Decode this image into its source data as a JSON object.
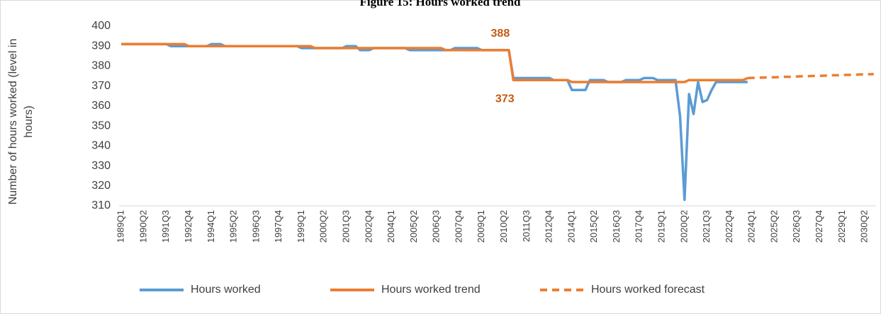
{
  "chart_data": {
    "type": "line",
    "title": "Figure 15: Hours worked trend",
    "y_label": "Number of hours worked (level in hours)",
    "ylim": [
      310,
      400
    ],
    "yticks": [
      310,
      320,
      330,
      340,
      350,
      360,
      370,
      380,
      390,
      400
    ],
    "grid": false,
    "legend": "bottom",
    "categories": [
      "1989Q1",
      null,
      null,
      null,
      null,
      "1990Q2",
      null,
      null,
      null,
      null,
      "1991Q3",
      null,
      null,
      null,
      null,
      "1992Q4",
      null,
      null,
      null,
      null,
      "1994Q1",
      null,
      null,
      null,
      null,
      "1995Q2",
      null,
      null,
      null,
      null,
      "1996Q3",
      null,
      null,
      null,
      null,
      "1997Q4",
      null,
      null,
      null,
      null,
      "1999Q1",
      null,
      null,
      null,
      null,
      "2000Q2",
      null,
      null,
      null,
      null,
      "2001Q3",
      null,
      null,
      null,
      null,
      "2002Q4",
      null,
      null,
      null,
      null,
      "2004Q1",
      null,
      null,
      null,
      null,
      "2005Q2",
      null,
      null,
      null,
      null,
      "2006Q3",
      null,
      null,
      null,
      null,
      "2007Q4",
      null,
      null,
      null,
      null,
      "2009Q1",
      null,
      null,
      null,
      null,
      "2010Q2",
      null,
      null,
      null,
      null,
      "2011Q3",
      null,
      null,
      null,
      null,
      "2012Q4",
      null,
      null,
      null,
      null,
      "2014Q1",
      null,
      null,
      null,
      null,
      "2015Q2",
      null,
      null,
      null,
      null,
      "2016Q3",
      null,
      null,
      null,
      null,
      "2017Q4",
      null,
      null,
      null,
      null,
      "2019Q1",
      null,
      null,
      null,
      null,
      "2020Q2",
      null,
      null,
      null,
      null,
      "2021Q3",
      null,
      null,
      null,
      null,
      "2022Q4",
      null,
      null,
      null,
      null,
      "2024Q1",
      null,
      null,
      null,
      null,
      "2025Q2",
      null,
      null,
      null,
      null,
      "2026Q3",
      null,
      null,
      null,
      null,
      "2027Q4",
      null,
      null,
      null,
      null,
      "2029Q1",
      null,
      null,
      null,
      null,
      "2030Q2",
      null,
      null
    ],
    "series": [
      {
        "name": "Hours worked",
        "color": "#5b9bd5",
        "style": "solid",
        "values": [
          391,
          391,
          391,
          391,
          391,
          391,
          391,
          391,
          391,
          391,
          391,
          390,
          390,
          390,
          390,
          390,
          390,
          390,
          390,
          390,
          391,
          391,
          391,
          390,
          390,
          390,
          390,
          390,
          390,
          390,
          390,
          390,
          390,
          390,
          390,
          390,
          390,
          390,
          390,
          390,
          389,
          389,
          389,
          389,
          389,
          389,
          389,
          389,
          389,
          389,
          390,
          390,
          390,
          388,
          388,
          388,
          389,
          389,
          389,
          389,
          389,
          389,
          389,
          389,
          388,
          388,
          388,
          388,
          388,
          388,
          388,
          388,
          388,
          388,
          389,
          389,
          389,
          389,
          389,
          389,
          388,
          388,
          388,
          388,
          388,
          388,
          388,
          374,
          374,
          374,
          374,
          374,
          374,
          374,
          374,
          374,
          373,
          373,
          373,
          373,
          368,
          368,
          368,
          368,
          373,
          373,
          373,
          373,
          372,
          372,
          372,
          372,
          373,
          373,
          373,
          373,
          374,
          374,
          374,
          373,
          373,
          373,
          373,
          373,
          355,
          313,
          366,
          356,
          372,
          362,
          363,
          368,
          372,
          372,
          372,
          372,
          372,
          372,
          372,
          372,
          null,
          null,
          null,
          null,
          null,
          null,
          null,
          null,
          null,
          null,
          null,
          null,
          null,
          null,
          null,
          null,
          null,
          null,
          null,
          null,
          null,
          null,
          null,
          null,
          null,
          null,
          null,
          null
        ]
      },
      {
        "name": "Hours worked trend",
        "color": "#ed7d31",
        "style": "solid",
        "values": [
          391,
          391,
          391,
          391,
          391,
          391,
          391,
          391,
          391,
          391,
          391,
          391,
          391,
          391,
          391,
          390,
          390,
          390,
          390,
          390,
          390,
          390,
          390,
          390,
          390,
          390,
          390,
          390,
          390,
          390,
          390,
          390,
          390,
          390,
          390,
          390,
          390,
          390,
          390,
          390,
          390,
          390,
          390,
          389,
          389,
          389,
          389,
          389,
          389,
          389,
          389,
          389,
          389,
          389,
          389,
          389,
          389,
          389,
          389,
          389,
          389,
          389,
          389,
          389,
          389,
          389,
          389,
          389,
          389,
          389,
          389,
          389,
          388,
          388,
          388,
          388,
          388,
          388,
          388,
          388,
          388,
          388,
          388,
          388,
          388,
          388,
          388,
          373,
          373,
          373,
          373,
          373,
          373,
          373,
          373,
          373,
          373,
          373,
          373,
          373,
          372,
          372,
          372,
          372,
          372,
          372,
          372,
          372,
          372,
          372,
          372,
          372,
          372,
          372,
          372,
          372,
          372,
          372,
          372,
          372,
          372,
          372,
          372,
          372,
          372,
          372,
          373,
          373,
          373,
          373,
          373,
          373,
          373,
          373,
          373,
          373,
          373,
          373,
          373,
          374,
          null,
          null,
          null,
          null,
          null,
          null,
          null,
          null,
          null,
          null,
          null,
          null,
          null,
          null,
          null,
          null,
          null,
          null,
          null,
          null,
          null,
          null,
          null,
          null,
          null,
          null,
          null,
          null
        ],
        "value_labels": [
          null,
          null,
          null,
          null,
          null,
          null,
          null,
          null,
          null,
          null,
          null,
          null,
          null,
          null,
          null,
          null,
          null,
          null,
          null,
          null,
          null,
          null,
          null,
          null,
          null,
          null,
          null,
          null,
          null,
          null,
          null,
          null,
          null,
          null,
          null,
          null,
          null,
          null,
          null,
          null,
          null,
          null,
          null,
          null,
          null,
          null,
          null,
          null,
          null,
          null,
          null,
          null,
          null,
          null,
          null,
          null,
          null,
          null,
          null,
          null,
          null,
          null,
          null,
          null,
          null,
          null,
          null,
          null,
          null,
          null,
          null,
          null,
          null,
          null,
          null,
          null,
          null,
          null,
          null,
          null,
          null,
          null,
          null,
          null,
          null,
          null,
          "388",
          "373",
          null,
          null,
          null,
          null,
          null,
          null,
          null,
          null,
          null,
          null,
          null,
          null,
          null,
          null,
          null,
          null,
          null,
          null,
          null,
          null,
          null,
          null,
          null,
          null,
          null,
          null,
          null,
          null,
          null,
          null,
          null,
          null,
          null,
          null,
          null,
          null,
          null,
          null,
          null,
          null,
          null,
          null,
          null,
          null,
          null,
          null,
          null,
          null,
          null,
          null,
          null,
          null,
          null,
          null,
          null,
          null,
          null,
          null,
          null,
          null,
          null,
          null,
          null,
          null,
          null,
          null,
          null,
          null,
          null,
          null,
          null,
          null,
          null,
          null,
          null,
          null,
          null,
          null,
          null,
          null
        ]
      },
      {
        "name": "Hours worked forecast",
        "color": "#ed7d31",
        "style": "dashed",
        "values": [
          null,
          null,
          null,
          null,
          null,
          null,
          null,
          null,
          null,
          null,
          null,
          null,
          null,
          null,
          null,
          null,
          null,
          null,
          null,
          null,
          null,
          null,
          null,
          null,
          null,
          null,
          null,
          null,
          null,
          null,
          null,
          null,
          null,
          null,
          null,
          null,
          null,
          null,
          null,
          null,
          null,
          null,
          null,
          null,
          null,
          null,
          null,
          null,
          null,
          null,
          null,
          null,
          null,
          null,
          null,
          null,
          null,
          null,
          null,
          null,
          null,
          null,
          null,
          null,
          null,
          null,
          null,
          null,
          null,
          null,
          null,
          null,
          null,
          null,
          null,
          null,
          null,
          null,
          null,
          null,
          null,
          null,
          null,
          null,
          null,
          null,
          null,
          null,
          null,
          null,
          null,
          null,
          null,
          null,
          null,
          null,
          null,
          null,
          null,
          null,
          null,
          null,
          null,
          null,
          null,
          null,
          null,
          null,
          null,
          null,
          null,
          null,
          null,
          null,
          null,
          null,
          null,
          null,
          null,
          null,
          null,
          null,
          null,
          null,
          null,
          null,
          null,
          null,
          null,
          null,
          null,
          null,
          null,
          null,
          null,
          null,
          null,
          null,
          null,
          374.0,
          374.1,
          374.1,
          374.2,
          374.3,
          374.4,
          374.4,
          374.5,
          374.6,
          374.6,
          374.7,
          374.8,
          374.9,
          374.9,
          375.0,
          375.1,
          375.1,
          375.2,
          375.3,
          375.4,
          375.4,
          375.5,
          375.6,
          375.6,
          375.7,
          375.8,
          375.9,
          375.9,
          376.0
        ]
      }
    ]
  }
}
